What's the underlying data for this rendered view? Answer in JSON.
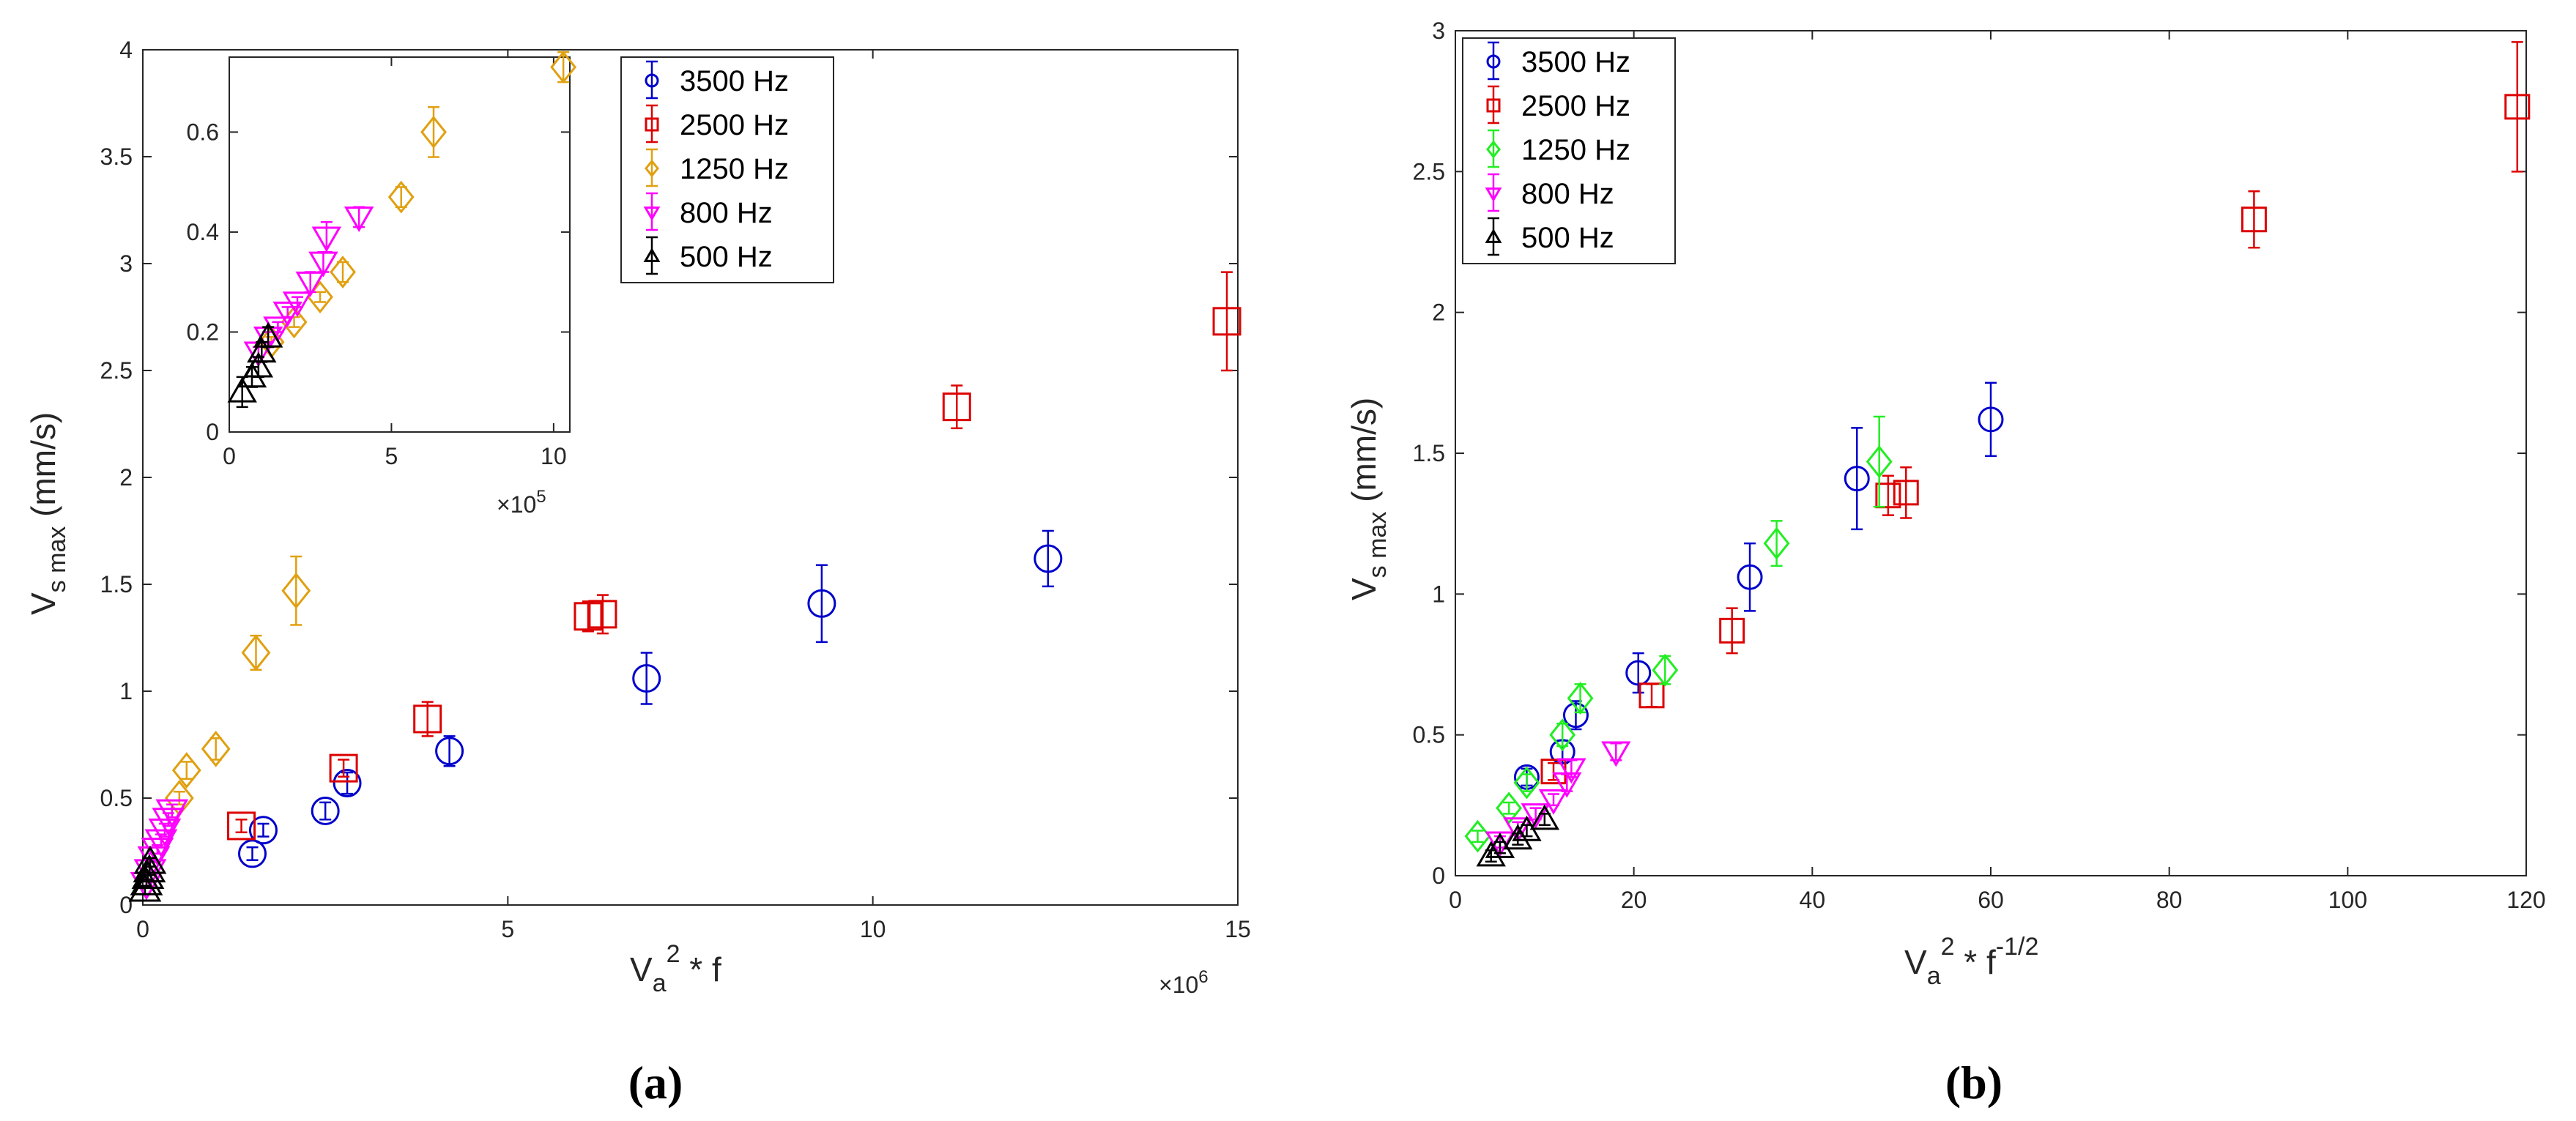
{
  "colors": {
    "3500 Hz": "#0000cc",
    "2500 Hz": "#dd0000",
    "1250 Hz": "#e0a010",
    "1250 Hz (b)": "#22ee22",
    "800 Hz": "#ff00ff",
    "500 Hz": "#000000"
  },
  "panels": {
    "a": "(a)",
    "b": "(b)"
  },
  "chart_data": [
    {
      "id": "panel-a",
      "type": "scatter",
      "xlabel_main": "V",
      "xlabel_sub": "a",
      "xlabel_sup": "2",
      "xlabel_rest": " * f",
      "ylabel_main": "V",
      "ylabel_sub": "s max",
      "ylabel_rest": " (mm/s)",
      "xlim": [
        0,
        15
      ],
      "ylim": [
        0,
        4
      ],
      "x_multiplier": "×10",
      "x_multiplier_exp": "6",
      "xticks": [
        0,
        5,
        10,
        15
      ],
      "xtick_labels": [
        "0",
        "5",
        "10",
        "15"
      ],
      "yticks": [
        0,
        0.5,
        1,
        1.5,
        2,
        2.5,
        3,
        3.5,
        4
      ],
      "ytick_labels": [
        "0",
        "0.5",
        "1",
        "1.5",
        "2",
        "2.5",
        "3",
        "3.5",
        "4"
      ],
      "legend": [
        "3500 Hz",
        "2500 Hz",
        "1250 Hz",
        "800 Hz",
        "500 Hz"
      ],
      "legend_position": "top-center",
      "series": [
        {
          "name": "3500 Hz",
          "marker": "circle",
          "x": [
            1.5,
            1.65,
            2.5,
            2.8,
            4.2,
            6.9,
            9.3,
            12.4
          ],
          "y": [
            0.24,
            0.35,
            0.44,
            0.57,
            0.72,
            1.06,
            1.41,
            1.62
          ],
          "err": [
            0.03,
            0.03,
            0.04,
            0.05,
            0.07,
            0.12,
            0.18,
            0.13
          ]
        },
        {
          "name": "2500 Hz",
          "marker": "square",
          "x": [
            1.35,
            2.75,
            3.9,
            6.1,
            6.3,
            11.15,
            14.85
          ],
          "y": [
            0.37,
            0.64,
            0.87,
            1.35,
            1.36,
            2.33,
            2.73
          ],
          "err": [
            0.03,
            0.04,
            0.08,
            0.07,
            0.09,
            0.1,
            0.23
          ]
        },
        {
          "name": "1250 Hz",
          "marker": "diamond",
          "x": [
            0.5,
            0.6,
            1.0,
            1.55,
            2.1
          ],
          "y": [
            0.5,
            0.63,
            0.73,
            1.18,
            1.47
          ],
          "err": [
            0.03,
            0.04,
            0.05,
            0.08,
            0.16
          ]
        },
        {
          "name": "800 Hz",
          "marker": "triangle-down",
          "x": [
            0.05,
            0.1,
            0.15,
            0.2,
            0.25,
            0.3,
            0.35,
            0.4
          ],
          "y": [
            0.1,
            0.16,
            0.22,
            0.26,
            0.3,
            0.35,
            0.4,
            0.44
          ],
          "err": [
            0.02,
            0.02,
            0.02,
            0.02,
            0.03,
            0.03,
            0.03,
            0.03
          ]
        },
        {
          "name": "500 Hz",
          "marker": "triangle-up",
          "x": [
            0.03,
            0.05,
            0.07,
            0.09,
            0.1
          ],
          "y": [
            0.07,
            0.1,
            0.13,
            0.16,
            0.2
          ],
          "err": [
            0.02,
            0.02,
            0.02,
            0.02,
            0.02
          ]
        }
      ]
    },
    {
      "id": "inset-a",
      "type": "scatter",
      "xlim": [
        0,
        10.5
      ],
      "ylim": [
        0,
        0.75
      ],
      "x_multiplier": "×10",
      "x_multiplier_exp": "5",
      "xticks": [
        0,
        5,
        10
      ],
      "xtick_labels": [
        "0",
        "5",
        "10"
      ],
      "yticks": [
        0,
        0.2,
        0.4,
        0.6
      ],
      "ytick_labels": [
        "0",
        "0.2",
        "0.4",
        "0.6"
      ],
      "series": [
        {
          "name": "1250 Hz",
          "marker": "diamond",
          "x": [
            1.3,
            2.0,
            2.8,
            3.5,
            5.3,
            6.3,
            10.3
          ],
          "y": [
            0.18,
            0.22,
            0.27,
            0.32,
            0.47,
            0.6,
            0.73
          ],
          "err": [
            0.01,
            0.01,
            0.01,
            0.02,
            0.02,
            0.05,
            0.03
          ]
        },
        {
          "name": "800 Hz",
          "marker": "triangle-down",
          "x": [
            0.9,
            1.2,
            1.5,
            1.8,
            2.1,
            2.5,
            2.9,
            3.0,
            4.0
          ],
          "y": [
            0.16,
            0.19,
            0.21,
            0.24,
            0.26,
            0.3,
            0.34,
            0.39,
            0.43
          ],
          "err": [
            0.01,
            0.01,
            0.01,
            0.01,
            0.01,
            0.02,
            0.02,
            0.03,
            0.02
          ]
        },
        {
          "name": "500 Hz",
          "marker": "triangle-up",
          "x": [
            0.4,
            0.7,
            0.9,
            1.0,
            1.2
          ],
          "y": [
            0.08,
            0.11,
            0.13,
            0.16,
            0.19
          ],
          "err": [
            0.03,
            0.02,
            0.02,
            0.02,
            0.02
          ]
        }
      ]
    },
    {
      "id": "panel-b",
      "type": "scatter",
      "xlabel_main": "V",
      "xlabel_sub": "a",
      "xlabel_sup": "2",
      "xlabel_rest": " * f",
      "xlabel_sup2": "-1/2",
      "ylabel_main": "V",
      "ylabel_sub": "s max",
      "ylabel_rest": " (mm/s)",
      "xlim": [
        0,
        120
      ],
      "ylim": [
        0,
        3
      ],
      "xticks": [
        0,
        20,
        40,
        60,
        80,
        100,
        120
      ],
      "xtick_labels": [
        "0",
        "20",
        "40",
        "60",
        "80",
        "100",
        "120"
      ],
      "yticks": [
        0,
        0.5,
        1,
        1.5,
        2,
        2.5,
        3
      ],
      "ytick_labels": [
        "0",
        "0.5",
        "1",
        "1.5",
        "2",
        "2.5",
        "3"
      ],
      "legend": [
        "3500 Hz",
        "2500 Hz",
        "1250 Hz",
        "800 Hz",
        "500 Hz"
      ],
      "legend_position": "top-left",
      "series": [
        {
          "name": "3500 Hz",
          "marker": "circle",
          "x": [
            8,
            12,
            13.5,
            20.5,
            33,
            45,
            60
          ],
          "y": [
            0.35,
            0.44,
            0.57,
            0.72,
            1.06,
            1.41,
            1.62
          ],
          "err": [
            0.03,
            0.04,
            0.05,
            0.07,
            0.12,
            0.18,
            0.13
          ]
        },
        {
          "name": "2500 Hz",
          "marker": "square",
          "x": [
            11,
            22,
            31,
            48.5,
            50.5,
            89.5,
            119
          ],
          "y": [
            0.37,
            0.64,
            0.87,
            1.35,
            1.36,
            2.33,
            2.73
          ],
          "err": [
            0.03,
            0.04,
            0.08,
            0.07,
            0.09,
            0.1,
            0.23
          ]
        },
        {
          "name": "1250 Hz",
          "marker": "diamond",
          "x": [
            2.5,
            6,
            8,
            12,
            14,
            23.5,
            36,
            47.5
          ],
          "y": [
            0.14,
            0.24,
            0.33,
            0.5,
            0.63,
            0.73,
            1.18,
            1.47
          ],
          "err": [
            0.02,
            0.02,
            0.03,
            0.04,
            0.05,
            0.05,
            0.08,
            0.16
          ]
        },
        {
          "name": "800 Hz",
          "marker": "triangle-down",
          "x": [
            5,
            7,
            9,
            11,
            12.5,
            13,
            18
          ],
          "y": [
            0.12,
            0.17,
            0.22,
            0.27,
            0.33,
            0.38,
            0.44
          ],
          "err": [
            0.02,
            0.02,
            0.02,
            0.02,
            0.03,
            0.03,
            0.03
          ]
        },
        {
          "name": "500 Hz",
          "marker": "triangle-up",
          "x": [
            4,
            5,
            7,
            8,
            10
          ],
          "y": [
            0.07,
            0.1,
            0.13,
            0.16,
            0.2
          ],
          "err": [
            0.02,
            0.02,
            0.02,
            0.02,
            0.02
          ]
        }
      ]
    }
  ]
}
